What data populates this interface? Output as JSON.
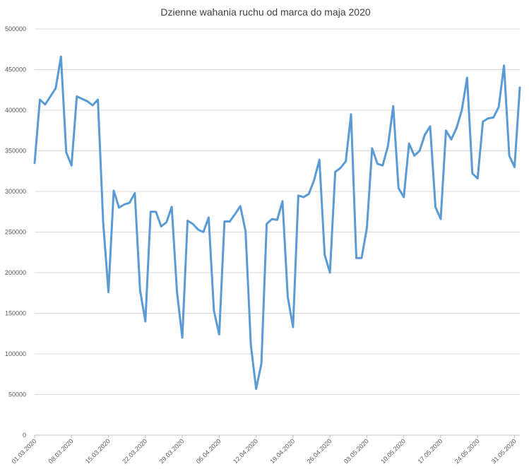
{
  "chart_data": {
    "type": "line",
    "title": "Dzienne wahania ruchu od marca do maja 2020",
    "xlabel": "",
    "ylabel": "",
    "ylim": [
      0,
      500000
    ],
    "yticks": [
      0,
      50000,
      100000,
      150000,
      200000,
      250000,
      300000,
      350000,
      400000,
      450000,
      500000
    ],
    "grid": true,
    "legend": "none",
    "color": "#5b9bd5",
    "xtick_labels": [
      "01.03.2020",
      "08.03.2020",
      "15.03.2020",
      "22.03.2020",
      "29.03.2020",
      "05.04.2020",
      "12.04.2020",
      "19.04.2020",
      "26.04.2020",
      "03.05.2020",
      "10.05.2020",
      "17.05.2020",
      "24.05.2020",
      "31.05.2020"
    ],
    "x": [
      "01.03.2020",
      "02.03.2020",
      "03.03.2020",
      "04.03.2020",
      "05.03.2020",
      "06.03.2020",
      "07.03.2020",
      "08.03.2020",
      "09.03.2020",
      "10.03.2020",
      "11.03.2020",
      "12.03.2020",
      "13.03.2020",
      "14.03.2020",
      "15.03.2020",
      "16.03.2020",
      "17.03.2020",
      "18.03.2020",
      "19.03.2020",
      "20.03.2020",
      "21.03.2020",
      "22.03.2020",
      "23.03.2020",
      "24.03.2020",
      "25.03.2020",
      "26.03.2020",
      "27.03.2020",
      "28.03.2020",
      "29.03.2020",
      "30.03.2020",
      "31.03.2020",
      "01.04.2020",
      "02.04.2020",
      "03.04.2020",
      "04.04.2020",
      "05.04.2020",
      "06.04.2020",
      "07.04.2020",
      "08.04.2020",
      "09.04.2020",
      "10.04.2020",
      "11.04.2020",
      "12.04.2020",
      "13.04.2020",
      "14.04.2020",
      "15.04.2020",
      "16.04.2020",
      "17.04.2020",
      "18.04.2020",
      "19.04.2020",
      "20.04.2020",
      "21.04.2020",
      "22.04.2020",
      "23.04.2020",
      "24.04.2020",
      "25.04.2020",
      "26.04.2020",
      "27.04.2020",
      "28.04.2020",
      "29.04.2020",
      "30.04.2020",
      "01.05.2020",
      "02.05.2020",
      "03.05.2020",
      "04.05.2020",
      "05.05.2020",
      "06.05.2020",
      "07.05.2020",
      "08.05.2020",
      "09.05.2020",
      "10.05.2020",
      "11.05.2020",
      "12.05.2020",
      "13.05.2020",
      "14.05.2020",
      "15.05.2020",
      "16.05.2020",
      "17.05.2020",
      "18.05.2020",
      "19.05.2020",
      "20.05.2020",
      "21.05.2020",
      "22.05.2020",
      "23.05.2020",
      "24.05.2020",
      "25.05.2020",
      "26.05.2020",
      "27.05.2020",
      "28.05.2020",
      "29.05.2020",
      "30.05.2020",
      "31.05.2020",
      "01.06.2020"
    ],
    "series": [
      {
        "name": "",
        "values": [
          335000,
          413000,
          407000,
          417000,
          427000,
          466000,
          348000,
          332000,
          417000,
          414000,
          411000,
          406000,
          413000,
          262000,
          176000,
          301000,
          280000,
          284000,
          286000,
          298000,
          178000,
          140000,
          275000,
          275000,
          257000,
          262000,
          281000,
          176000,
          120000,
          264000,
          260000,
          253000,
          250000,
          268000,
          153000,
          124000,
          263000,
          263000,
          272000,
          282000,
          251000,
          111000,
          57000,
          88000,
          260000,
          266000,
          265000,
          288000,
          170000,
          133000,
          295000,
          293000,
          297000,
          314000,
          339000,
          222000,
          200000,
          324000,
          329000,
          337000,
          395000,
          218000,
          218000,
          255000,
          353000,
          334000,
          332000,
          356000,
          405000,
          304000,
          293000,
          359000,
          344000,
          350000,
          370000,
          380000,
          281000,
          266000,
          375000,
          364000,
          378000,
          400000,
          440000,
          322000,
          316000,
          386000,
          390000,
          391000,
          404000,
          455000,
          344000,
          330000,
          428000
        ]
      }
    ]
  }
}
